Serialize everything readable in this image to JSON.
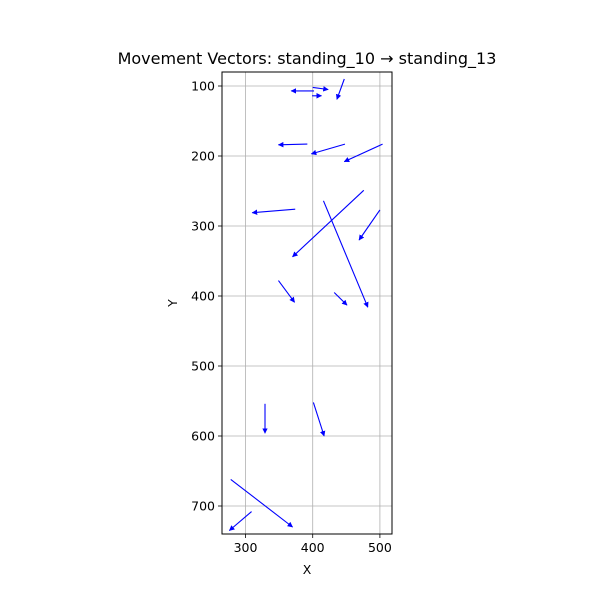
{
  "chart_data": {
    "type": "quiver",
    "title": "Movement Vectors: standing_10 → standing_13",
    "xlabel": "X",
    "ylabel": "Y",
    "xlim": [
      265,
      518
    ],
    "ylim": [
      740,
      80
    ],
    "y_inverted": true,
    "x_ticks": [
      300,
      400,
      500
    ],
    "y_ticks": [
      100,
      200,
      300,
      400,
      500,
      600,
      700
    ],
    "grid": true,
    "arrow_color": "#0000ff",
    "vectors": [
      {
        "x0": 447,
        "y0": 90,
        "x1": 436,
        "y1": 119
      },
      {
        "x0": 402,
        "y0": 107,
        "x1": 368,
        "y1": 107
      },
      {
        "x0": 400,
        "y0": 102,
        "x1": 423,
        "y1": 105
      },
      {
        "x0": 399,
        "y0": 114,
        "x1": 413,
        "y1": 114
      },
      {
        "x0": 392,
        "y0": 183,
        "x1": 349,
        "y1": 184
      },
      {
        "x0": 448,
        "y0": 183,
        "x1": 398,
        "y1": 197
      },
      {
        "x0": 504,
        "y0": 183,
        "x1": 447,
        "y1": 208
      },
      {
        "x0": 374,
        "y0": 276,
        "x1": 310,
        "y1": 281
      },
      {
        "x0": 476,
        "y0": 249,
        "x1": 370,
        "y1": 344
      },
      {
        "x0": 416,
        "y0": 264,
        "x1": 482,
        "y1": 416
      },
      {
        "x0": 500,
        "y0": 277,
        "x1": 469,
        "y1": 320
      },
      {
        "x0": 349,
        "y0": 378,
        "x1": 373,
        "y1": 409
      },
      {
        "x0": 432,
        "y0": 395,
        "x1": 451,
        "y1": 413
      },
      {
        "x0": 329,
        "y0": 554,
        "x1": 329,
        "y1": 596
      },
      {
        "x0": 401,
        "y0": 552,
        "x1": 417,
        "y1": 600
      },
      {
        "x0": 278,
        "y0": 662,
        "x1": 370,
        "y1": 730
      },
      {
        "x0": 309,
        "y0": 708,
        "x1": 276,
        "y1": 735
      }
    ]
  }
}
